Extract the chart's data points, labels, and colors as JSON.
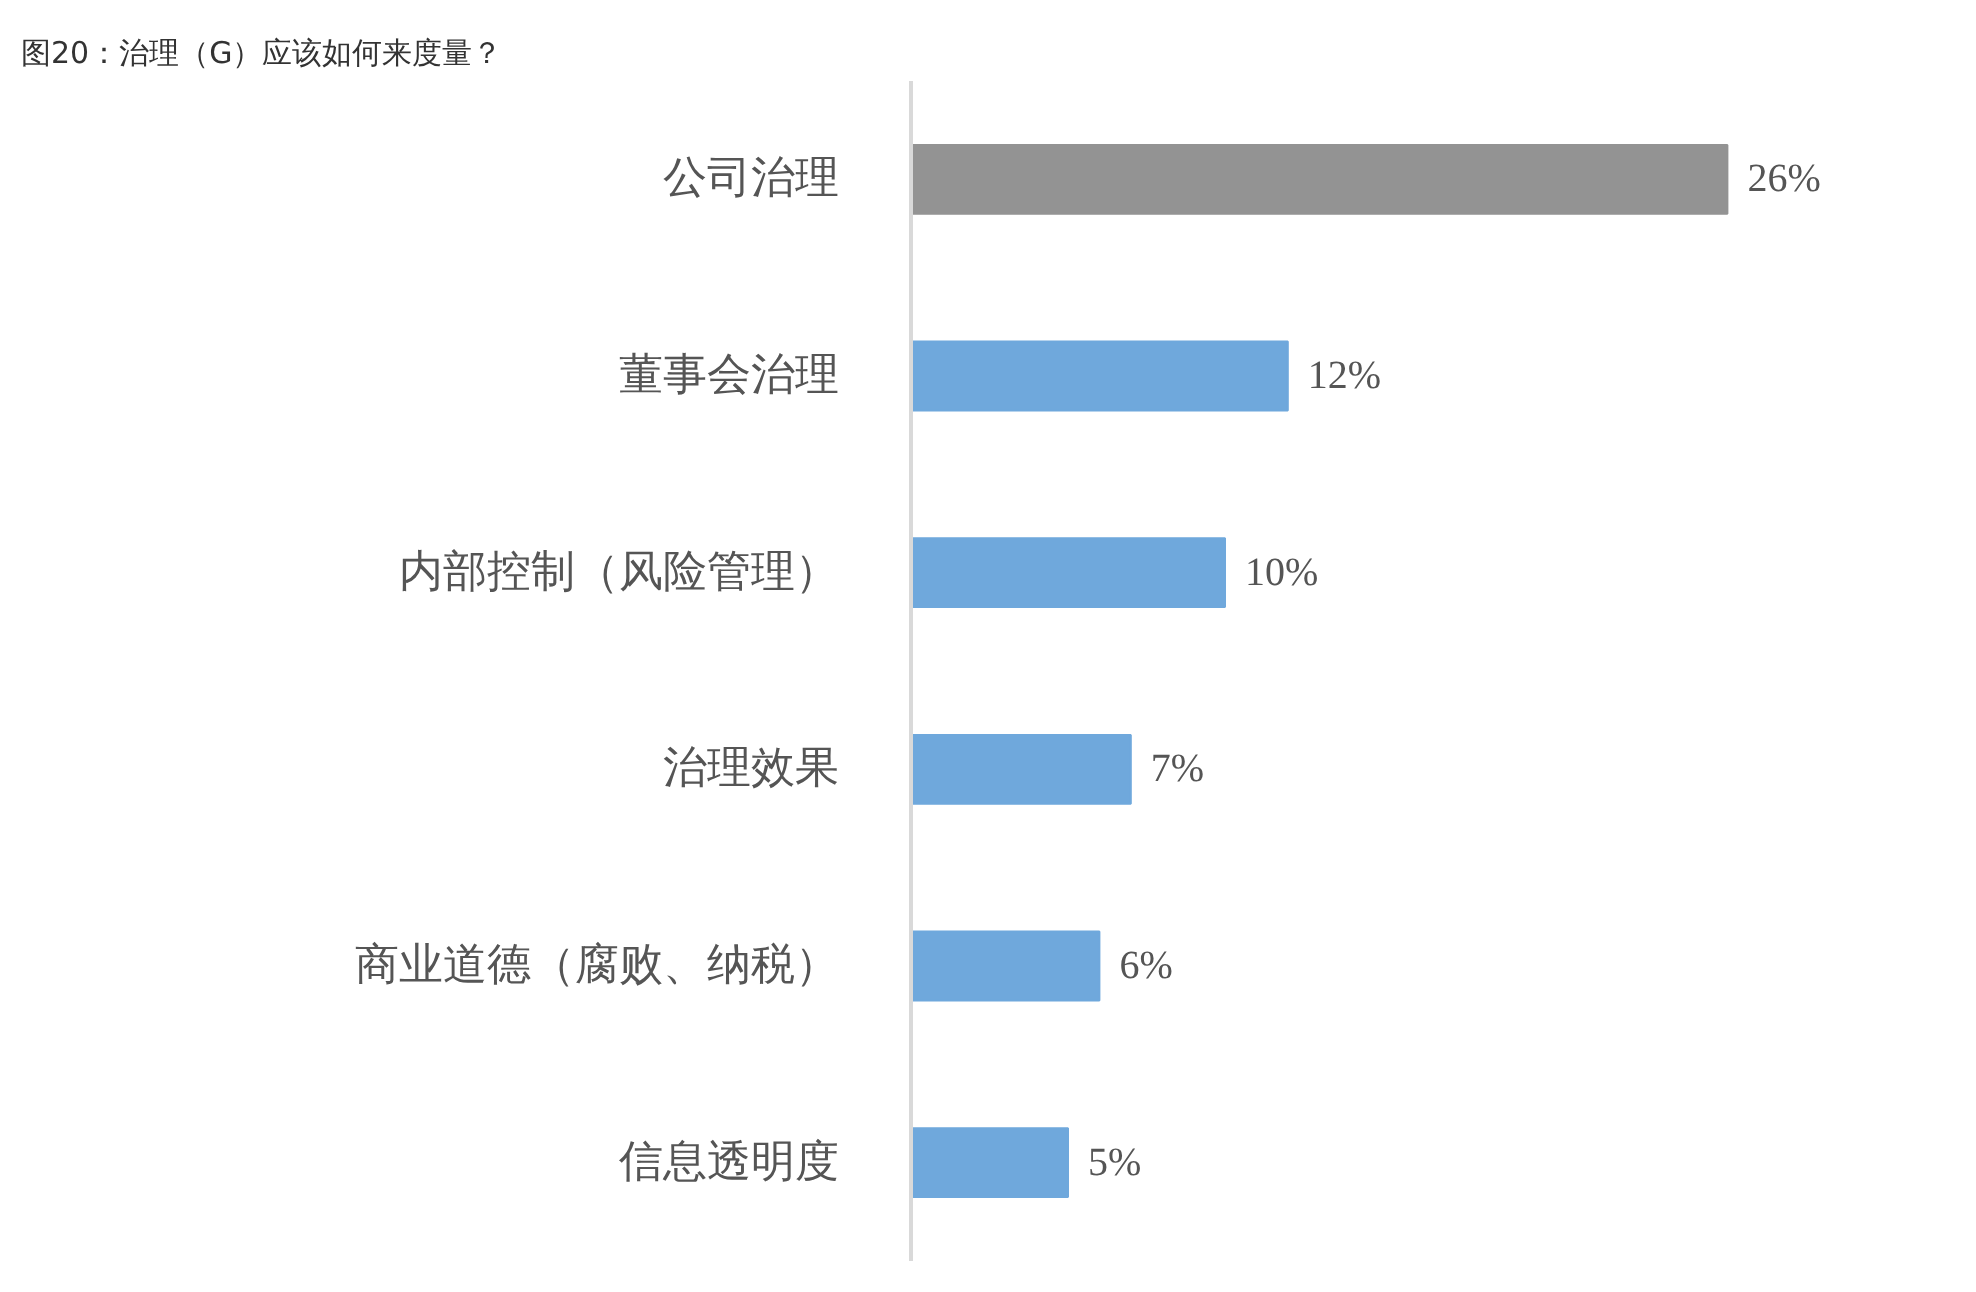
{
  "chart_data": {
    "type": "bar",
    "orientation": "horizontal",
    "title": "图20：治理（G）应该如何来度量？",
    "categories": [
      "公司治理",
      "董事会治理",
      "内部控制（风险管理）",
      "治理效果",
      "商业道德（腐败、纳税）",
      "信息透明度"
    ],
    "values": [
      26,
      12,
      10,
      7,
      6,
      5
    ],
    "colors": [
      "#939393",
      "#6fa8dc",
      "#6fa8dc",
      "#6fa8dc",
      "#6fa8dc",
      "#6fa8dc"
    ],
    "value_labels": [
      "26%",
      "12%",
      "10%",
      "7%",
      "6%",
      "5%"
    ],
    "tick_labels": "y"
  }
}
